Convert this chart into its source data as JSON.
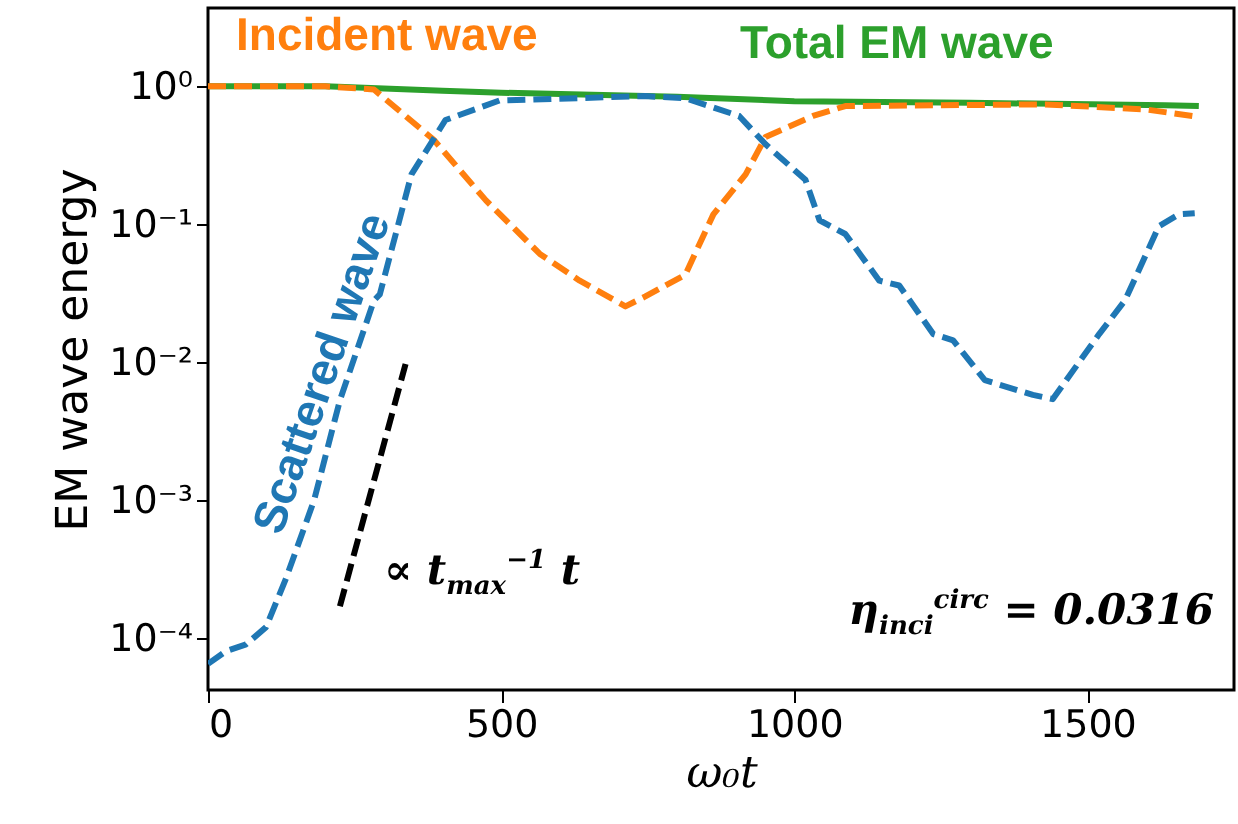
{
  "chart_data": {
    "type": "line",
    "xlabel": "ω₀t",
    "ylabel": "EM wave energy",
    "xlim": [
      0,
      1750
    ],
    "xticks": [
      0,
      500,
      1000,
      1500
    ],
    "ylim": [
      4.2e-05,
      3.7
    ],
    "yticks": [
      {
        "value": 1,
        "label": "10⁰"
      },
      {
        "value": 0.1,
        "label": "10⁻¹"
      },
      {
        "value": 0.01,
        "label": "10⁻²"
      },
      {
        "value": 0.001,
        "label": "10⁻³"
      },
      {
        "value": 0.0001,
        "label": "10⁻⁴"
      }
    ],
    "log": "y",
    "grid": false,
    "marker": "none",
    "series": [
      {
        "name": "Total EM wave",
        "color": "#2ca02c",
        "line_style": "solid",
        "x": [
          0,
          200,
          400,
          500,
          746,
          800,
          1000,
          1300,
          1632,
          1690
        ],
        "values": [
          1.0,
          1.0,
          0.93,
          0.9,
          0.85,
          0.84,
          0.78,
          0.76,
          0.73,
          0.72
        ]
      },
      {
        "name": "Incident wave",
        "color": "#ff7f0e",
        "line_style": "dashed",
        "x": [
          0,
          200,
          283,
          385,
          474,
          566,
          634,
          712,
          746,
          814,
          862,
          917,
          951,
          1032,
          1087,
          1428,
          1600,
          1690
        ],
        "values": [
          1.0,
          1.0,
          0.95,
          0.41,
          0.149,
          0.061,
          0.039,
          0.0254,
          0.03,
          0.043,
          0.118,
          0.23,
          0.43,
          0.61,
          0.72,
          0.74,
          0.68,
          0.6
        ]
      },
      {
        "name": "Scattered wave",
        "color": "#1f77b4",
        "line_style": "dashed",
        "x": [
          0,
          30,
          65,
          99,
          133,
          181,
          225,
          283,
          293,
          347,
          405,
          497,
          746,
          814,
          906,
          951,
          1019,
          1043,
          1087,
          1145,
          1179,
          1237,
          1271,
          1325,
          1407,
          1441,
          1520,
          1564,
          1622,
          1656,
          1683
        ],
        "values": [
          6.5e-05,
          8e-05,
          9e-05,
          0.00012,
          0.00027,
          0.001,
          0.0053,
          0.028,
          0.031,
          0.23,
          0.57,
          0.79,
          0.85,
          0.82,
          0.61,
          0.38,
          0.21,
          0.107,
          0.085,
          0.039,
          0.036,
          0.016,
          0.0144,
          0.0074,
          0.0058,
          0.0054,
          0.016,
          0.028,
          0.097,
          0.118,
          0.12
        ]
      },
      {
        "type": "line",
        "color": "#000000",
        "line_style": "dashed",
        "x": [
          225,
          337
        ],
        "values": [
          0.00017,
          0.0097
        ]
      }
    ],
    "annotations": [
      "∝ t$_{max}$$^{−1}$ t",
      "η$_{inci}$$^{circ}$ = 0.0316"
    ]
  }
}
